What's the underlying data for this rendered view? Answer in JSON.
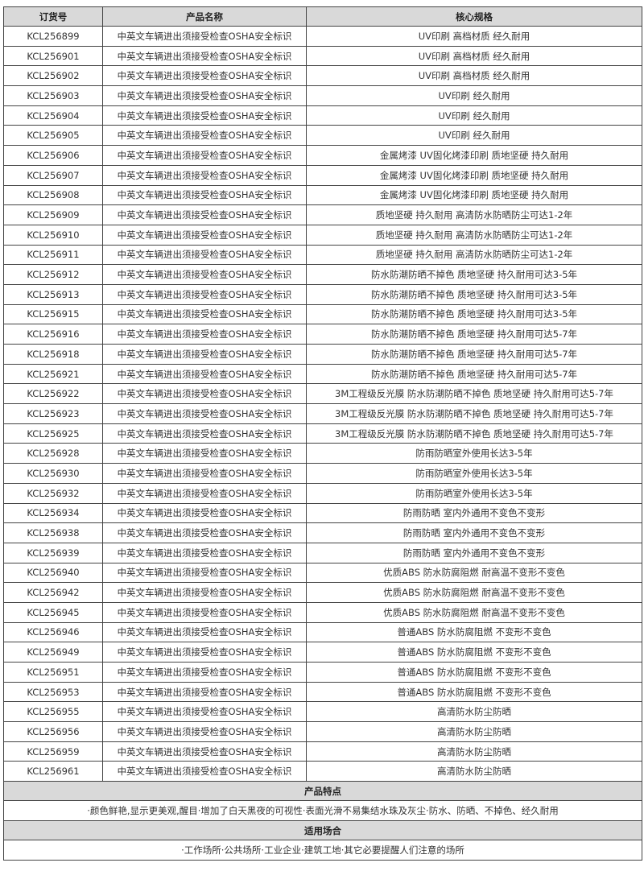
{
  "table": {
    "headers": [
      "订货号",
      "产品名称",
      "核心规格"
    ],
    "rows": [
      [
        "KCL256899",
        "中英文车辆进出须接受检查OSHA安全标识",
        "UV印刷 高档材质 经久耐用"
      ],
      [
        "KCL256901",
        "中英文车辆进出须接受检查OSHA安全标识",
        "UV印刷 高档材质 经久耐用"
      ],
      [
        "KCL256902",
        "中英文车辆进出须接受检查OSHA安全标识",
        "UV印刷 高档材质 经久耐用"
      ],
      [
        "KCL256903",
        "中英文车辆进出须接受检查OSHA安全标识",
        "UV印刷 经久耐用"
      ],
      [
        "KCL256904",
        "中英文车辆进出须接受检查OSHA安全标识",
        "UV印刷 经久耐用"
      ],
      [
        "KCL256905",
        "中英文车辆进出须接受检查OSHA安全标识",
        "UV印刷 经久耐用"
      ],
      [
        "KCL256906",
        "中英文车辆进出须接受检查OSHA安全标识",
        "金属烤漆 UV固化烤漆印刷 质地坚硬 持久耐用"
      ],
      [
        "KCL256907",
        "中英文车辆进出须接受检查OSHA安全标识",
        "金属烤漆 UV固化烤漆印刷 质地坚硬 持久耐用"
      ],
      [
        "KCL256908",
        "中英文车辆进出须接受检查OSHA安全标识",
        "金属烤漆 UV固化烤漆印刷 质地坚硬 持久耐用"
      ],
      [
        "KCL256909",
        "中英文车辆进出须接受检查OSHA安全标识",
        "质地坚硬 持久耐用 高清防水防晒防尘可达1-2年"
      ],
      [
        "KCL256910",
        "中英文车辆进出须接受检查OSHA安全标识",
        "质地坚硬 持久耐用 高清防水防晒防尘可达1-2年"
      ],
      [
        "KCL256911",
        "中英文车辆进出须接受检查OSHA安全标识",
        "质地坚硬 持久耐用 高清防水防晒防尘可达1-2年"
      ],
      [
        "KCL256912",
        "中英文车辆进出须接受检查OSHA安全标识",
        "防水防潮防晒不掉色 质地坚硬 持久耐用可达3-5年"
      ],
      [
        "KCL256913",
        "中英文车辆进出须接受检查OSHA安全标识",
        "防水防潮防晒不掉色 质地坚硬 持久耐用可达3-5年"
      ],
      [
        "KCL256915",
        "中英文车辆进出须接受检查OSHA安全标识",
        "防水防潮防晒不掉色 质地坚硬 持久耐用可达3-5年"
      ],
      [
        "KCL256916",
        "中英文车辆进出须接受检查OSHA安全标识",
        "防水防潮防晒不掉色 质地坚硬 持久耐用可达5-7年"
      ],
      [
        "KCL256918",
        "中英文车辆进出须接受检查OSHA安全标识",
        "防水防潮防晒不掉色 质地坚硬 持久耐用可达5-7年"
      ],
      [
        "KCL256921",
        "中英文车辆进出须接受检查OSHA安全标识",
        "防水防潮防晒不掉色 质地坚硬 持久耐用可达5-7年"
      ],
      [
        "KCL256922",
        "中英文车辆进出须接受检查OSHA安全标识",
        "3M工程级反光膜 防水防潮防晒不掉色 质地坚硬 持久耐用可达5-7年"
      ],
      [
        "KCL256923",
        "中英文车辆进出须接受检查OSHA安全标识",
        "3M工程级反光膜 防水防潮防晒不掉色 质地坚硬 持久耐用可达5-7年"
      ],
      [
        "KCL256925",
        "中英文车辆进出须接受检查OSHA安全标识",
        "3M工程级反光膜 防水防潮防晒不掉色 质地坚硬 持久耐用可达5-7年"
      ],
      [
        "KCL256928",
        "中英文车辆进出须接受检查OSHA安全标识",
        "防雨防晒室外使用长达3-5年"
      ],
      [
        "KCL256930",
        "中英文车辆进出须接受检查OSHA安全标识",
        "防雨防晒室外使用长达3-5年"
      ],
      [
        "KCL256932",
        "中英文车辆进出须接受检查OSHA安全标识",
        "防雨防晒室外使用长达3-5年"
      ],
      [
        "KCL256934",
        "中英文车辆进出须接受检查OSHA安全标识",
        "防雨防晒 室内外通用不变色不变形"
      ],
      [
        "KCL256938",
        "中英文车辆进出须接受检查OSHA安全标识",
        "防雨防晒 室内外通用不变色不变形"
      ],
      [
        "KCL256939",
        "中英文车辆进出须接受检查OSHA安全标识",
        "防雨防晒 室内外通用不变色不变形"
      ],
      [
        "KCL256940",
        "中英文车辆进出须接受检查OSHA安全标识",
        "优质ABS 防水防腐阻燃 耐高温不变形不变色"
      ],
      [
        "KCL256942",
        "中英文车辆进出须接受检查OSHA安全标识",
        "优质ABS 防水防腐阻燃 耐高温不变形不变色"
      ],
      [
        "KCL256945",
        "中英文车辆进出须接受检查OSHA安全标识",
        "优质ABS 防水防腐阻燃 耐高温不变形不变色"
      ],
      [
        "KCL256946",
        "中英文车辆进出须接受检查OSHA安全标识",
        "普通ABS 防水防腐阻燃 不变形不变色"
      ],
      [
        "KCL256949",
        "中英文车辆进出须接受检查OSHA安全标识",
        "普通ABS 防水防腐阻燃 不变形不变色"
      ],
      [
        "KCL256951",
        "中英文车辆进出须接受检查OSHA安全标识",
        "普通ABS 防水防腐阻燃 不变形不变色"
      ],
      [
        "KCL256953",
        "中英文车辆进出须接受检查OSHA安全标识",
        "普通ABS 防水防腐阻燃 不变形不变色"
      ],
      [
        "KCL256955",
        "中英文车辆进出须接受检查OSHA安全标识",
        "高清防水防尘防晒"
      ],
      [
        "KCL256956",
        "中英文车辆进出须接受检查OSHA安全标识",
        "高清防水防尘防晒"
      ],
      [
        "KCL256959",
        "中英文车辆进出须接受检查OSHA安全标识",
        "高清防水防尘防晒"
      ],
      [
        "KCL256961",
        "中英文车辆进出须接受检查OSHA安全标识",
        "高清防水防尘防晒"
      ]
    ]
  },
  "features": {
    "title": "产品特点",
    "text": "·颜色鲜艳,显示更美观,醒目·增加了白天黑夜的可视性·表面光滑不易集结水珠及灰尘·防水、防晒、不掉色、经久耐用"
  },
  "usage": {
    "title": "适用场合",
    "text": "·工作场所·公共场所·工业企业·建筑工地·其它必要提醒人们注意的场所"
  }
}
